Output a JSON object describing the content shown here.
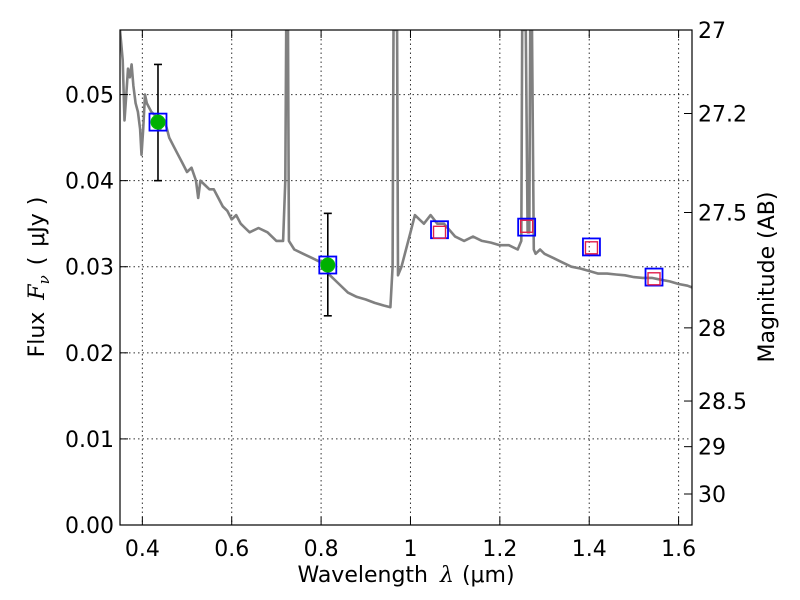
{
  "chart_data": {
    "type": "scatter",
    "xlabel_text": "Wavelength",
    "xlabel_symbol": "λ",
    "xlabel_unit": "(μm)",
    "ylabel_text": "Flux",
    "ylabel_symbol": "F",
    "ylabel_subscript": "ν",
    "ylabel_open": "(",
    "ylabel_unit": "μJy",
    "ylabel_close": ")",
    "y2label": "Magnitude (AB)",
    "xlim": [
      0.35,
      1.63
    ],
    "ylim": [
      0.0,
      0.0575
    ],
    "grid": true,
    "x_ticks": [
      {
        "value": 0.4,
        "label": "0.4"
      },
      {
        "value": 0.6,
        "label": "0.6"
      },
      {
        "value": 0.8,
        "label": "0.8"
      },
      {
        "value": 1.0,
        "label": "1"
      },
      {
        "value": 1.2,
        "label": "1.2"
      },
      {
        "value": 1.4,
        "label": "1.4"
      },
      {
        "value": 1.6,
        "label": "1.6"
      }
    ],
    "y_ticks": [
      {
        "value": 0.0,
        "label": "0.00"
      },
      {
        "value": 0.01,
        "label": "0.01"
      },
      {
        "value": 0.02,
        "label": "0.02"
      },
      {
        "value": 0.03,
        "label": "0.03"
      },
      {
        "value": 0.04,
        "label": "0.04"
      },
      {
        "value": 0.05,
        "label": "0.05"
      }
    ],
    "mag_ticks": [
      {
        "label": "27",
        "flux": 0.0575
      },
      {
        "label": "27.2",
        "flux": 0.0478
      },
      {
        "label": "27.5",
        "flux": 0.0363
      },
      {
        "label": "28",
        "flux": 0.0229
      },
      {
        "label": "28.5",
        "flux": 0.0144
      },
      {
        "label": "29",
        "flux": 0.0091
      },
      {
        "label": "30",
        "flux": 0.0036
      }
    ],
    "sed_model": [
      [
        0.35,
        0.0575
      ],
      [
        0.356,
        0.054
      ],
      [
        0.36,
        0.047
      ],
      [
        0.364,
        0.05
      ],
      [
        0.368,
        0.053
      ],
      [
        0.372,
        0.052
      ],
      [
        0.376,
        0.0535
      ],
      [
        0.38,
        0.051
      ],
      [
        0.385,
        0.049
      ],
      [
        0.39,
        0.048
      ],
      [
        0.395,
        0.046
      ],
      [
        0.398,
        0.043
      ],
      [
        0.402,
        0.046
      ],
      [
        0.406,
        0.05
      ],
      [
        0.41,
        0.049
      ],
      [
        0.42,
        0.048
      ],
      [
        0.43,
        0.0475
      ],
      [
        0.44,
        0.046
      ],
      [
        0.45,
        0.047
      ],
      [
        0.46,
        0.045
      ],
      [
        0.47,
        0.044
      ],
      [
        0.48,
        0.043
      ],
      [
        0.49,
        0.042
      ],
      [
        0.5,
        0.041
      ],
      [
        0.51,
        0.0415
      ],
      [
        0.52,
        0.04
      ],
      [
        0.525,
        0.038
      ],
      [
        0.53,
        0.04
      ],
      [
        0.54,
        0.0395
      ],
      [
        0.55,
        0.039
      ],
      [
        0.56,
        0.039
      ],
      [
        0.57,
        0.038
      ],
      [
        0.58,
        0.037
      ],
      [
        0.59,
        0.0365
      ],
      [
        0.6,
        0.0355
      ],
      [
        0.61,
        0.036
      ],
      [
        0.62,
        0.035
      ],
      [
        0.63,
        0.0345
      ],
      [
        0.64,
        0.034
      ],
      [
        0.66,
        0.0345
      ],
      [
        0.68,
        0.034
      ],
      [
        0.7,
        0.033
      ],
      [
        0.715,
        0.033
      ],
      [
        0.72,
        0.04
      ],
      [
        0.722,
        0.0575
      ],
      [
        0.726,
        0.0575
      ],
      [
        0.728,
        0.033
      ],
      [
        0.74,
        0.032
      ],
      [
        0.76,
        0.0315
      ],
      [
        0.78,
        0.031
      ],
      [
        0.8,
        0.0305
      ],
      [
        0.82,
        0.029
      ],
      [
        0.84,
        0.028
      ],
      [
        0.86,
        0.027
      ],
      [
        0.88,
        0.0265
      ],
      [
        0.9,
        0.0262
      ],
      [
        0.92,
        0.0258
      ],
      [
        0.94,
        0.0255
      ],
      [
        0.955,
        0.0253
      ],
      [
        0.96,
        0.03
      ],
      [
        0.962,
        0.0575
      ],
      [
        0.97,
        0.0575
      ],
      [
        0.972,
        0.029
      ],
      [
        0.98,
        0.03
      ],
      [
        0.99,
        0.032
      ],
      [
        1.0,
        0.034
      ],
      [
        1.01,
        0.036
      ],
      [
        1.02,
        0.0355
      ],
      [
        1.03,
        0.035
      ],
      [
        1.045,
        0.036
      ],
      [
        1.06,
        0.035
      ],
      [
        1.075,
        0.035
      ],
      [
        1.1,
        0.0335
      ],
      [
        1.12,
        0.033
      ],
      [
        1.14,
        0.0335
      ],
      [
        1.16,
        0.033
      ],
      [
        1.18,
        0.0328
      ],
      [
        1.2,
        0.0325
      ],
      [
        1.22,
        0.0325
      ],
      [
        1.24,
        0.032
      ],
      [
        1.248,
        0.033
      ],
      [
        1.25,
        0.0575
      ],
      [
        1.258,
        0.0575
      ],
      [
        1.262,
        0.034
      ],
      [
        1.266,
        0.034
      ],
      [
        1.268,
        0.0575
      ],
      [
        1.272,
        0.0575
      ],
      [
        1.276,
        0.032
      ],
      [
        1.28,
        0.0315
      ],
      [
        1.29,
        0.032
      ],
      [
        1.3,
        0.0315
      ],
      [
        1.32,
        0.031
      ],
      [
        1.34,
        0.0305
      ],
      [
        1.36,
        0.03
      ],
      [
        1.38,
        0.0298
      ],
      [
        1.4,
        0.0295
      ],
      [
        1.42,
        0.0292
      ],
      [
        1.44,
        0.0292
      ],
      [
        1.46,
        0.0291
      ],
      [
        1.48,
        0.029
      ],
      [
        1.5,
        0.0288
      ],
      [
        1.52,
        0.0287
      ],
      [
        1.54,
        0.0287
      ],
      [
        1.56,
        0.0285
      ],
      [
        1.58,
        0.0283
      ],
      [
        1.6,
        0.028
      ],
      [
        1.62,
        0.0278
      ],
      [
        1.63,
        0.0276
      ]
    ],
    "detections": [
      {
        "x": 0.435,
        "y": 0.0468,
        "yerr_low": 0.04,
        "yerr_high": 0.0535
      },
      {
        "x": 0.815,
        "y": 0.0302,
        "yerr_low": 0.0243,
        "yerr_high": 0.0362
      }
    ],
    "model_photometry": [
      {
        "x": 0.435,
        "y": 0.0468
      },
      {
        "x": 0.815,
        "y": 0.0302
      },
      {
        "x": 1.065,
        "y": 0.0343
      },
      {
        "x": 1.26,
        "y": 0.0346
      },
      {
        "x": 1.405,
        "y": 0.0323
      },
      {
        "x": 1.545,
        "y": 0.0288
      }
    ],
    "model_photometry_inner": [
      {
        "x": 1.065,
        "y": 0.034
      },
      {
        "x": 1.26,
        "y": 0.0347
      },
      {
        "x": 1.405,
        "y": 0.0322
      },
      {
        "x": 1.545,
        "y": 0.0286
      }
    ],
    "colors": {
      "sed": "#808080",
      "detection": "#00b000",
      "detection_edge": "#00c000",
      "model_box": "#0000ff",
      "inner_box": "#e0204a",
      "errorbar": "#000000"
    }
  }
}
